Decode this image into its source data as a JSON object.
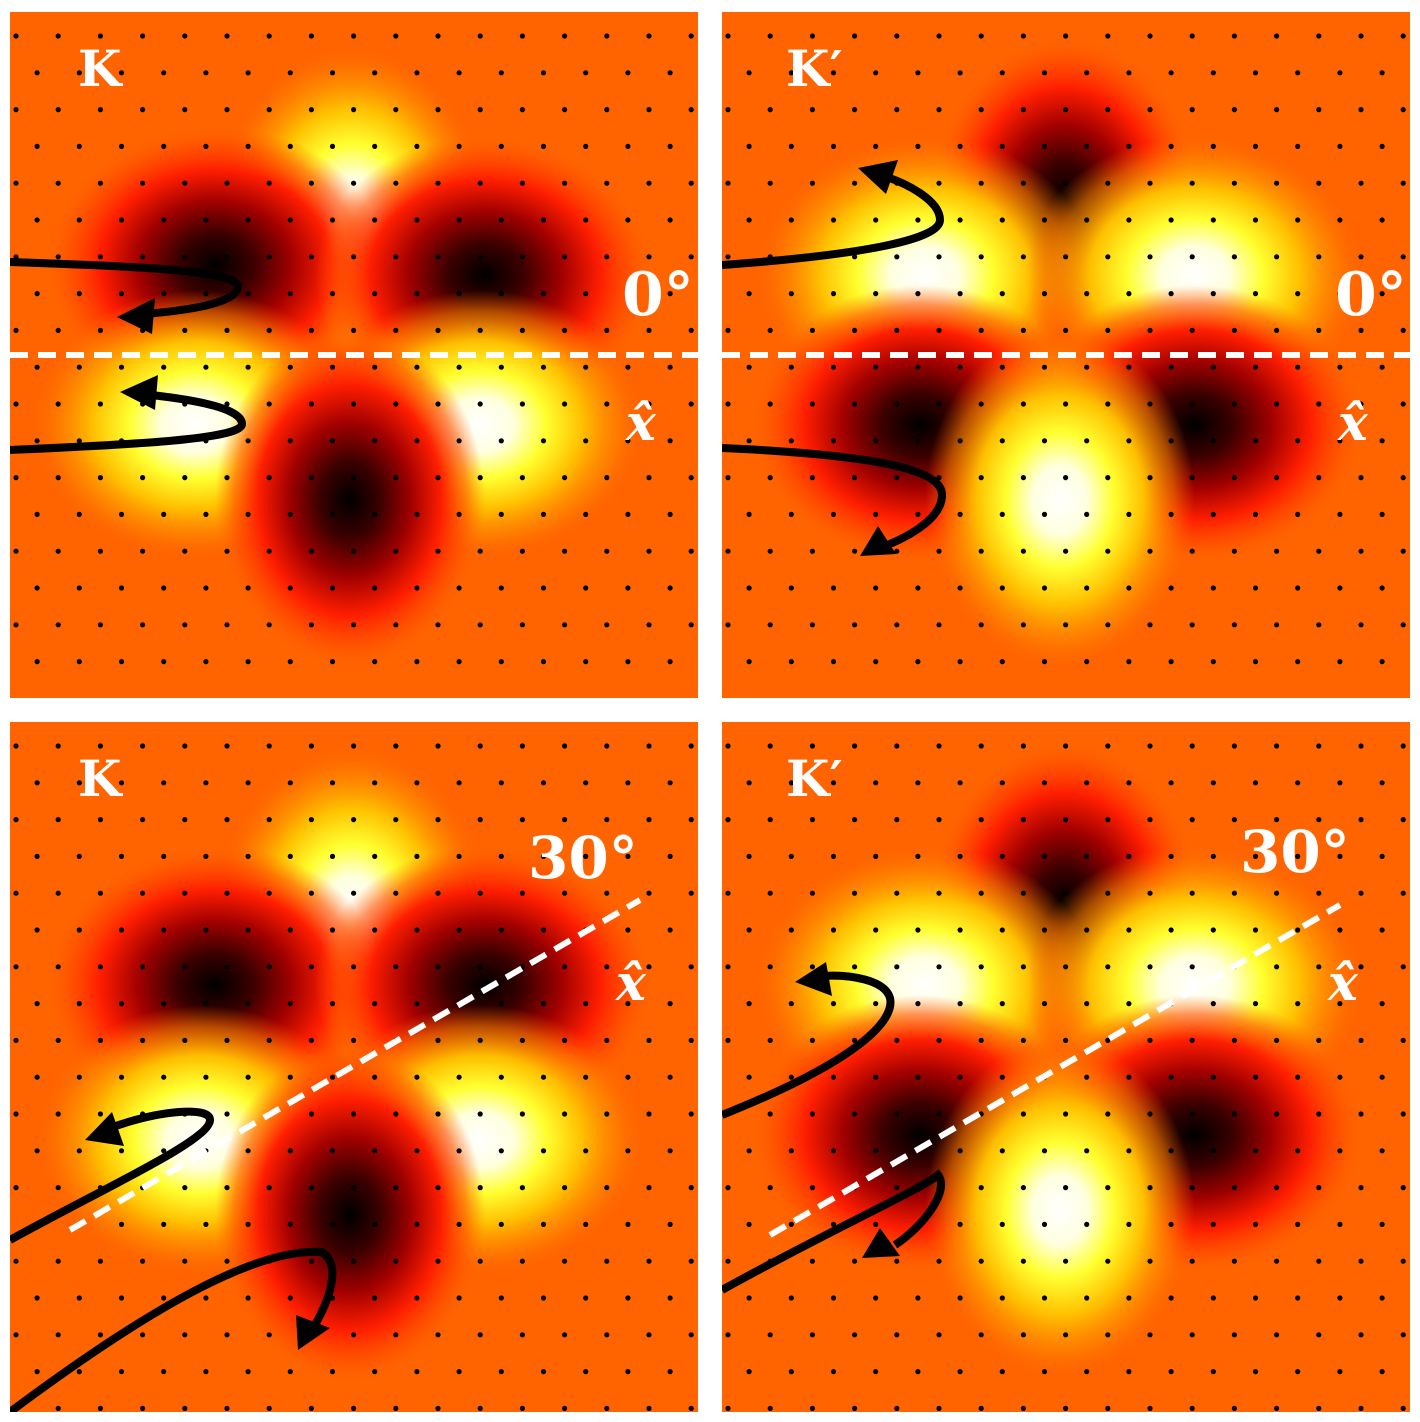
{
  "figure": {
    "background": "#ffffff",
    "colors": {
      "field": "#ff6400",
      "hot_stops": [
        "#000000",
        "#b00000",
        "#ff2000",
        "#ff6400",
        "#ffb000",
        "#ffff30",
        "#ffffff"
      ],
      "lattice_dot": "#000000",
      "axis_line": "#ffffff",
      "trajectory": "#000000",
      "label": "#ffffff"
    },
    "panels": [
      {
        "id": "K-0",
        "valley_label": "K",
        "angle_label": "0°",
        "axis_label": "x̂",
        "valley": "K",
        "rotation_deg": 0
      },
      {
        "id": "Kp-0",
        "valley_label": "K′",
        "angle_label": "0°",
        "axis_label": "x̂",
        "valley": "Kp",
        "rotation_deg": 0
      },
      {
        "id": "K-30",
        "valley_label": "K",
        "angle_label": "30°",
        "axis_label": "x̂",
        "valley": "K",
        "rotation_deg": 30
      },
      {
        "id": "Kp-30",
        "valley_label": "K′",
        "angle_label": "30°",
        "axis_label": "x̂",
        "valley": "Kp",
        "rotation_deg": 30
      }
    ]
  }
}
